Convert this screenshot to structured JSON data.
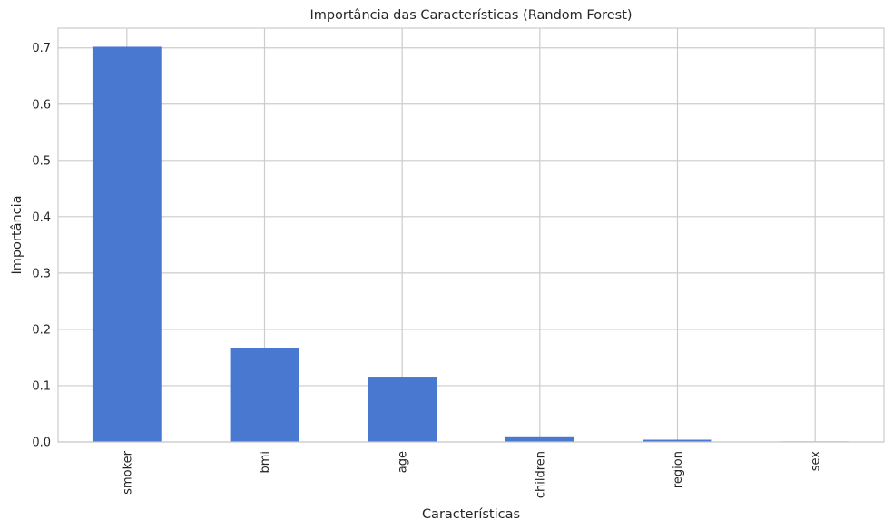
{
  "chart_data": {
    "type": "bar",
    "title": "Importância das Características (Random Forest)",
    "xlabel": "Características",
    "ylabel": "Importância",
    "categories": [
      "smoker",
      "bmi",
      "age",
      "children",
      "region",
      "sex"
    ],
    "values": [
      0.702,
      0.166,
      0.116,
      0.01,
      0.004,
      0.001
    ],
    "ylim": [
      0,
      0.735
    ],
    "yticks": [
      0.0,
      0.1,
      0.2,
      0.3,
      0.4,
      0.5,
      0.6,
      0.7
    ],
    "ytick_labels": [
      "0.0",
      "0.1",
      "0.2",
      "0.3",
      "0.4",
      "0.5",
      "0.6",
      "0.7"
    ],
    "bar_color": "#4878d0",
    "grid": true,
    "legend": "none"
  }
}
